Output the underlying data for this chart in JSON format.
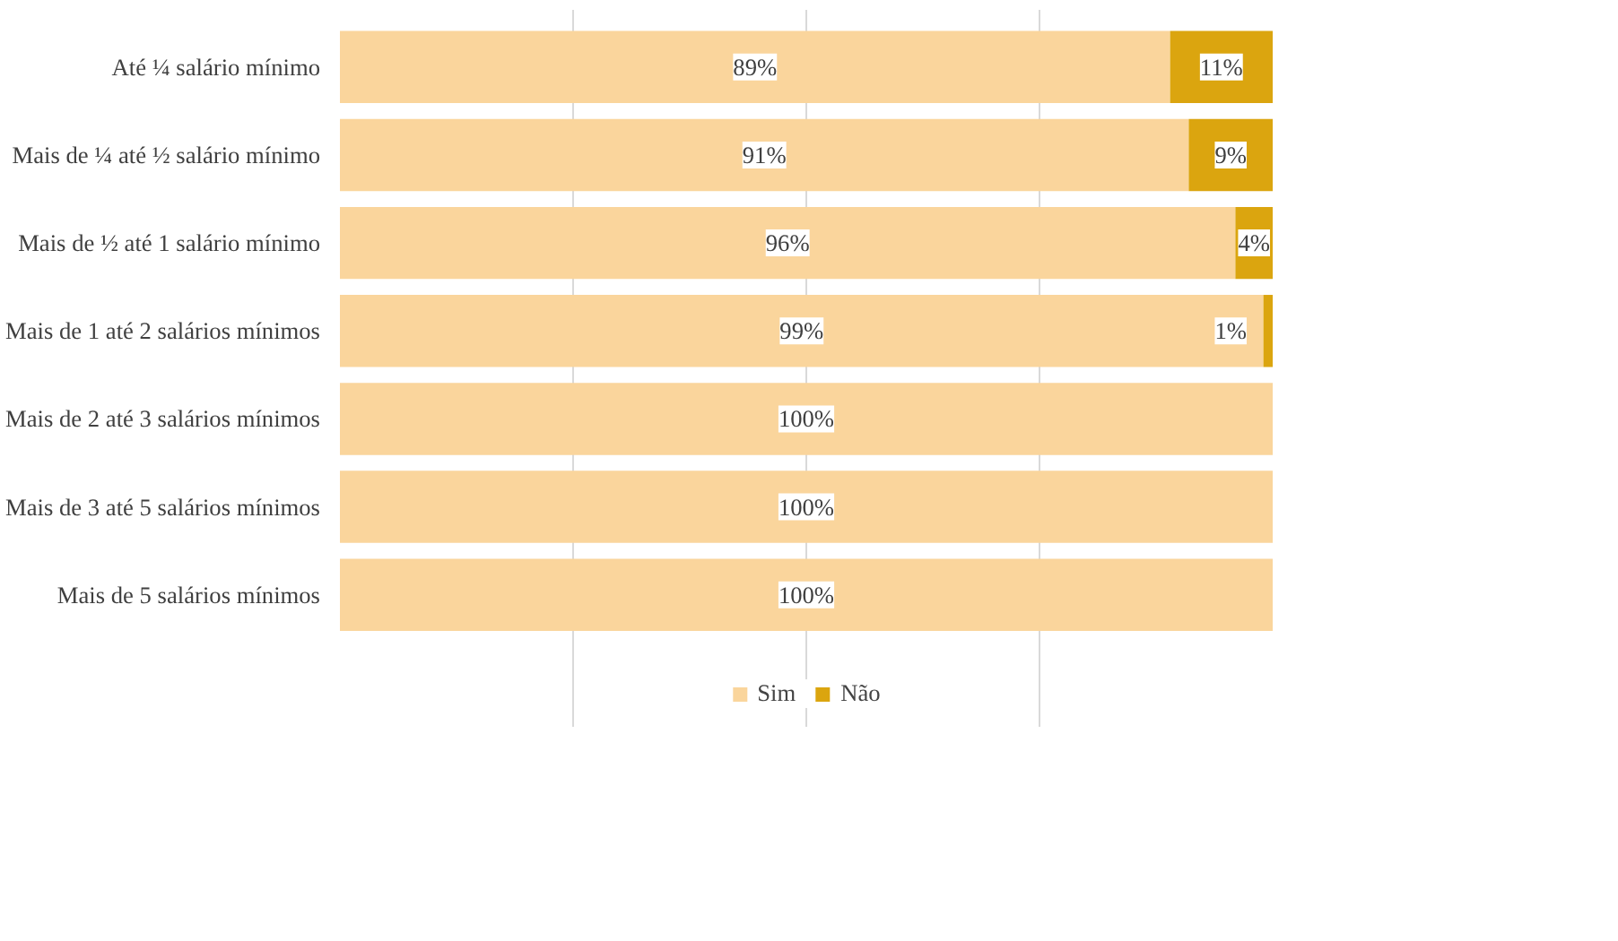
{
  "chart_data": {
    "type": "bar",
    "orientation": "horizontal",
    "stacked": true,
    "categories": [
      "Até ¼ salário mínimo",
      "Mais de ¼ até ½ salário mínimo",
      "Mais de ½ até 1 salário mínimo",
      "Mais de 1 até 2 salários mínimos",
      "Mais de 2 até 3 salários mínimos",
      "Mais de 3 até 5 salários mínimos",
      "Mais de 5 salários mínimos"
    ],
    "series": [
      {
        "name": "Sim",
        "color": "#fad59c",
        "values": [
          89,
          91,
          96,
          99,
          100,
          100,
          100
        ],
        "value_labels": [
          "89%",
          "91%",
          "96%",
          "99%",
          "100%",
          "100%",
          "100%"
        ]
      },
      {
        "name": "Não",
        "color": "#dba50f",
        "values": [
          11,
          9,
          4,
          1,
          null,
          null,
          null
        ],
        "value_labels": [
          "11%",
          "9%",
          "4%",
          "1%",
          null,
          null,
          null
        ]
      }
    ],
    "xlim": [
      0,
      100
    ],
    "grid": "x",
    "tick_labels": "y",
    "legend": "bottom"
  }
}
